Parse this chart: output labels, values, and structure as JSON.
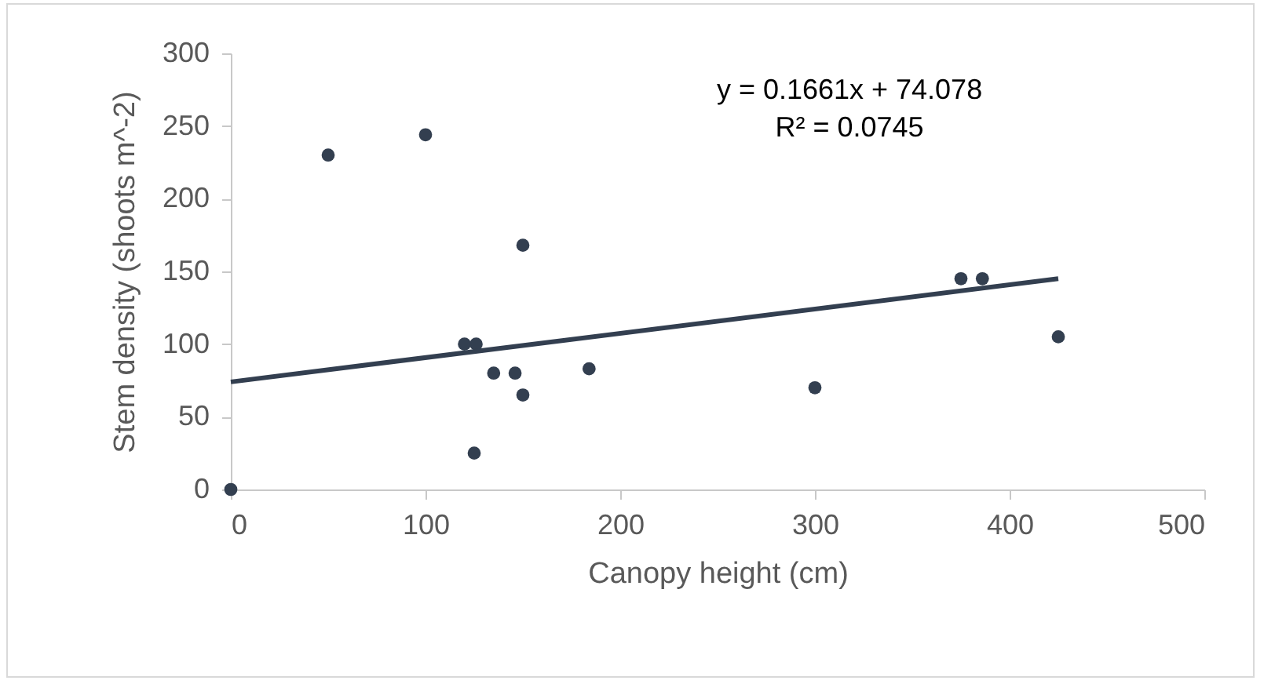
{
  "chart_data": {
    "type": "scatter",
    "xlabel": "Canopy height (cm)",
    "ylabel": "Stem density (shoots m^-2)",
    "xlim": [
      0,
      500
    ],
    "xticks": [
      0,
      100,
      200,
      300,
      400,
      500
    ],
    "ylim": [
      0,
      300
    ],
    "yticks": [
      0,
      50,
      100,
      150,
      200,
      250,
      300
    ],
    "grid": false,
    "annotations": [
      "y = 0.1661x + 74.078",
      "R² = 0.0745"
    ],
    "series": [
      {
        "marker": "circle",
        "color": "#333f50",
        "x": [
          0,
          50,
          100,
          120,
          126,
          135,
          146,
          150,
          150,
          125,
          184,
          300,
          375,
          386,
          425
        ],
        "values": [
          0,
          230,
          244,
          100,
          100,
          80,
          80,
          168,
          65,
          25,
          83,
          70,
          145,
          145,
          105
        ]
      },
      {
        "type": "line",
        "color": "#333f50",
        "line_style": "solid",
        "x": [
          0,
          425
        ],
        "values": [
          74,
          145
        ]
      }
    ]
  }
}
